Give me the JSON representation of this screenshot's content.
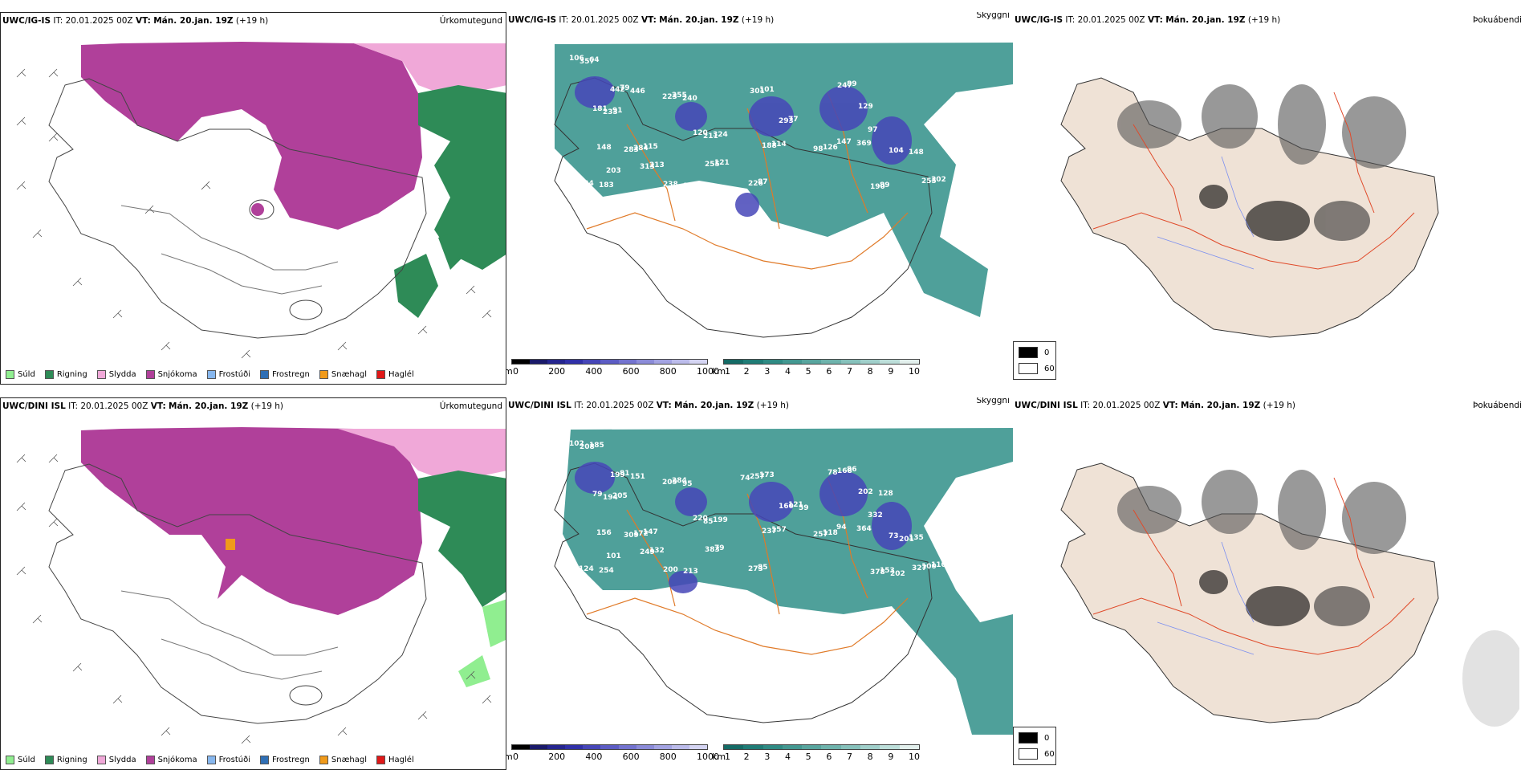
{
  "rows": [
    {
      "model": "UWC/IG-IS",
      "it_label": "IT:",
      "it_value": "20.01.2025 00Z",
      "vt_label": "VT:",
      "vt_value": "Mán. 20.jan. 19Z",
      "lead": "(+19 h)"
    },
    {
      "model": "UWC/DINI ISL",
      "it_label": "IT:",
      "it_value": "20.01.2025 00Z",
      "vt_label": "VT:",
      "vt_value": "Mán. 20.jan. 19Z",
      "lead": "(+19 h)"
    }
  ],
  "panel_types": {
    "precip": "Úrkomutegund",
    "cloud": "Skyggni",
    "fog": "Þokuábendi"
  },
  "precip_legend": [
    {
      "label": "Súld",
      "color": "#90ee90"
    },
    {
      "label": "Rigning",
      "color": "#2e8b57"
    },
    {
      "label": "Slydda",
      "color": "#f0a8d8"
    },
    {
      "label": "Snjókoma",
      "color": "#b0409a"
    },
    {
      "label": "Frostúði",
      "color": "#87b7ee"
    },
    {
      "label": "Frostregn",
      "color": "#2f6fb5"
    },
    {
      "label": "Snæhagl",
      "color": "#f09a1a"
    },
    {
      "label": "Haglél",
      "color": "#e01818"
    }
  ],
  "cloudbase_scale": {
    "unit": "m",
    "ticks": [
      "0",
      "200",
      "400",
      "600",
      "800",
      "1000"
    ],
    "colors": [
      "#000000",
      "#1a1a6a",
      "#25258f",
      "#3030a8",
      "#4646b8",
      "#5c5cc4",
      "#7373cf",
      "#8b8bd8",
      "#a3a3e2",
      "#bbbbea",
      "#d4d4f2"
    ]
  },
  "visibility_scale": {
    "unit": "km",
    "ticks": [
      "1",
      "2",
      "3",
      "4",
      "5",
      "6",
      "7",
      "8",
      "9",
      "10"
    ],
    "colors": [
      "#146b66",
      "#1f7c76",
      "#2f8b84",
      "#439891",
      "#58a59e",
      "#6eb3ac",
      "#86c1bb",
      "#a0cfca",
      "#bcded9",
      "#e2efec"
    ]
  },
  "fog_scale": {
    "labels": [
      "0",
      "60"
    ],
    "colors": [
      "#000000",
      "#ffffff"
    ]
  },
  "cloud_numbers_top": [
    "106",
    "79",
    "181",
    "115",
    "255",
    "120",
    "101",
    "77",
    "89",
    "97",
    "104",
    "302",
    "89",
    "147",
    "126",
    "114",
    "87",
    "121",
    "238",
    "213",
    "203",
    "134",
    "64",
    "442",
    "91",
    "284",
    "223",
    "324",
    "301",
    "293",
    "247",
    "129",
    "148",
    "255",
    "190",
    "369",
    "98",
    "188",
    "226",
    "255",
    "167",
    "313",
    "148",
    "183",
    "357",
    "446",
    "233",
    "283",
    "240",
    "211"
  ],
  "cloud_numbers_bottom": [
    "102",
    "81",
    "79",
    "147",
    "284",
    "220",
    "173",
    "121",
    "86",
    "332",
    "73",
    "110",
    "153",
    "94",
    "118",
    "157",
    "85",
    "79",
    "200",
    "132",
    "101",
    "124",
    "185",
    "199",
    "205",
    "172",
    "209",
    "199",
    "257",
    "160",
    "168",
    "202",
    "135",
    "100",
    "378",
    "364",
    "257",
    "237",
    "273",
    "383",
    "213",
    "249",
    "156",
    "254",
    "208",
    "151",
    "194",
    "309",
    "95",
    "85",
    "74",
    "59",
    "78",
    "128",
    "201",
    "327",
    "202"
  ]
}
